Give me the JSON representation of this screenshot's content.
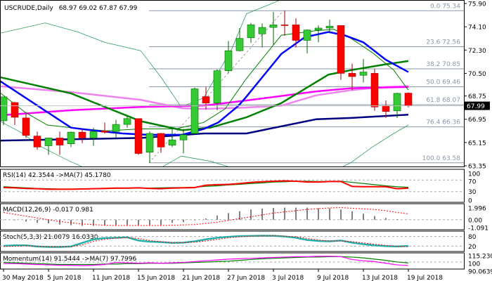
{
  "header": {
    "symbol": "USCRUDE,Daily",
    "ohlc": "68.97 69.02 67.87 67.99"
  },
  "chart_data": {
    "type": "candlestick",
    "title": "USCRUDE,Daily 68.97 69.02 67.87 67.99",
    "colors": {
      "up": "#33cc33",
      "down": "#ff0000",
      "ma_fast": "#0000ff",
      "ma_slow": "#008000",
      "ma_magenta": "#ff00ff",
      "ma_violet": "#ee82ee",
      "ma_navy": "#000080",
      "bands": "#2e9e5e",
      "fib": "#8a97a8"
    },
    "x_ticks": [
      {
        "i": 0,
        "label": "30 May 2018"
      },
      {
        "i": 4,
        "label": "5 Jun 2018"
      },
      {
        "i": 8,
        "label": "11 Jun 2018"
      },
      {
        "i": 12,
        "label": "15 Jun 2018"
      },
      {
        "i": 16,
        "label": "21 Jun 2018"
      },
      {
        "i": 20,
        "label": "27 Jun 2018"
      },
      {
        "i": 24,
        "label": "3 Jul 2018"
      },
      {
        "i": 28,
        "label": "9 Jul 2018"
      },
      {
        "i": 32,
        "label": "13 Jul 2018"
      },
      {
        "i": 36,
        "label": "19 Jul 2018"
      }
    ],
    "y_ticks": [
      "75.90",
      "74.10",
      "72.30",
      "70.50",
      "68.75",
      "66.95",
      "65.15",
      "63.35"
    ],
    "ylim": [
      63.35,
      75.9
    ],
    "last_price": "67.99",
    "ohlc": [
      [
        66.83,
        68.7,
        66.5,
        68.68
      ],
      [
        68.24,
        68.3,
        66.5,
        67.1
      ],
      [
        67.05,
        67.4,
        65.5,
        65.7
      ],
      [
        65.65,
        66.0,
        64.6,
        64.8
      ],
      [
        64.9,
        65.5,
        64.2,
        65.5
      ],
      [
        65.5,
        66.0,
        64.2,
        64.95
      ],
      [
        65.05,
        66.0,
        64.8,
        65.95
      ],
      [
        65.95,
        66.2,
        65.1,
        65.5
      ],
      [
        65.5,
        66.3,
        64.9,
        66.0
      ],
      [
        66.05,
        66.7,
        65.85,
        65.95
      ],
      [
        66.0,
        66.9,
        65.5,
        66.55
      ],
      [
        66.55,
        67.2,
        66.3,
        67.0
      ],
      [
        67.0,
        67.0,
        64.2,
        64.3
      ],
      [
        64.4,
        66.0,
        63.58,
        65.85
      ],
      [
        65.85,
        65.9,
        64.35,
        64.8
      ],
      [
        64.95,
        66.3,
        64.8,
        65.35
      ],
      [
        65.35,
        66.2,
        64.3,
        65.75
      ],
      [
        65.85,
        69.4,
        65.8,
        69.3
      ],
      [
        68.7,
        69.45,
        67.7,
        68.2
      ],
      [
        68.2,
        70.8,
        67.65,
        70.7
      ],
      [
        70.7,
        73.0,
        70.5,
        72.25
      ],
      [
        72.25,
        74.0,
        72.2,
        73.2
      ],
      [
        73.25,
        74.4,
        72.85,
        74.25
      ],
      [
        73.55,
        74.35,
        72.5,
        74.05
      ],
      [
        74.05,
        75.25,
        72.7,
        74.25
      ],
      [
        74.25,
        75.34,
        73.4,
        74.2
      ],
      [
        74.25,
        74.75,
        72.5,
        73.05
      ],
      [
        73.05,
        73.9,
        72.05,
        73.85
      ],
      [
        73.85,
        74.2,
        72.9,
        74.0
      ],
      [
        74.0,
        74.65,
        73.6,
        74.15
      ],
      [
        74.2,
        74.2,
        70.0,
        70.5
      ],
      [
        70.5,
        71.25,
        69.2,
        70.25
      ],
      [
        70.35,
        71.6,
        69.8,
        70.6
      ],
      [
        70.5,
        70.85,
        67.6,
        67.9
      ],
      [
        68.0,
        68.4,
        67.05,
        67.55
      ],
      [
        67.6,
        69.0,
        67.05,
        68.95
      ],
      [
        68.97,
        69.02,
        67.87,
        67.99
      ]
    ],
    "fibonacci": [
      {
        "label": "0.0 75.34",
        "level": 75.34
      },
      {
        "label": "23.6 72.56",
        "level": 72.56
      },
      {
        "label": "38.2 70.85",
        "level": 70.85
      },
      {
        "label": "50.0 69.46",
        "level": 69.46
      },
      {
        "label": "61.8 68.07",
        "level": 68.07
      },
      {
        "label": "76.4 66.36",
        "level": 66.36
      },
      {
        "label": "100.0 63.58",
        "level": 63.58
      }
    ],
    "overlays": [
      {
        "key": "bb_upper",
        "color": "#2e9e5e",
        "width": 0.8,
        "points": [
          [
            -0.3,
            73.6
          ],
          [
            3.7,
            74.4
          ],
          [
            6.6,
            73.7
          ],
          [
            9,
            72.9
          ],
          [
            12.2,
            72.25
          ],
          [
            14,
            70.2
          ],
          [
            15.8,
            67.9
          ],
          [
            17.8,
            68.6
          ],
          [
            20.3,
            72.4
          ],
          [
            21.6,
            75.1
          ],
          [
            24.7,
            76.2
          ]
        ]
      },
      {
        "key": "bb_lower",
        "color": "#2e9e5e",
        "width": 0.8,
        "points": [
          [
            -0.3,
            66.8
          ],
          [
            1.6,
            65.9
          ],
          [
            3.4,
            64.8
          ],
          [
            5.9,
            63.7
          ],
          [
            7.2,
            63.2
          ],
          [
            14,
            63.2
          ],
          [
            15.8,
            64.1
          ],
          [
            18.4,
            63.7
          ],
          [
            20.3,
            63.2
          ],
          [
            30,
            63.2
          ],
          [
            30.9,
            63.6
          ],
          [
            32.8,
            64.8
          ],
          [
            34.7,
            65.85
          ],
          [
            36,
            66.5
          ]
        ]
      },
      {
        "key": "ma_navy",
        "color": "#000080",
        "width": 2.5,
        "points": [
          [
            -0.3,
            65.3
          ],
          [
            12.2,
            65.5
          ],
          [
            17.8,
            65.85
          ],
          [
            21.6,
            65.85
          ],
          [
            27.8,
            66.95
          ],
          [
            30.9,
            67.05
          ],
          [
            36,
            67.3
          ]
        ]
      },
      {
        "key": "ma_violet",
        "color": "#ee82ee",
        "width": 2.5,
        "points": [
          [
            -0.3,
            69.5
          ],
          [
            6,
            69.05
          ],
          [
            12.2,
            68.45
          ],
          [
            15.9,
            67.8
          ],
          [
            17.8,
            67.75
          ],
          [
            21.6,
            67.85
          ],
          [
            24.7,
            68.0
          ],
          [
            27.8,
            68.8
          ],
          [
            30.9,
            69.2
          ],
          [
            34,
            69.45
          ],
          [
            36,
            69.5
          ]
        ]
      },
      {
        "key": "ma_magenta",
        "color": "#ff00ff",
        "width": 2.5,
        "points": [
          [
            -0.3,
            67.25
          ],
          [
            6,
            67.65
          ],
          [
            12.2,
            67.9
          ],
          [
            17.8,
            68.0
          ],
          [
            21.6,
            68.4
          ],
          [
            27.8,
            69.1
          ],
          [
            30.9,
            69.35
          ],
          [
            36,
            69.45
          ]
        ]
      },
      {
        "key": "ma_slow",
        "color": "#008000",
        "width": 2.5,
        "points": [
          [
            -0.3,
            70.2
          ],
          [
            6,
            68.95
          ],
          [
            12.2,
            66.8
          ],
          [
            15.9,
            66.1
          ],
          [
            18.4,
            66.3
          ],
          [
            21.6,
            67.1
          ],
          [
            24.7,
            68.2
          ],
          [
            28.9,
            70.4
          ],
          [
            30.9,
            70.75
          ],
          [
            34,
            71.2
          ],
          [
            36,
            71.45
          ]
        ]
      },
      {
        "key": "ma_fast_thin",
        "color": "#008000",
        "width": 1,
        "points": [
          [
            -0.3,
            69.0
          ],
          [
            1.9,
            67.5
          ],
          [
            3.9,
            66.5
          ],
          [
            6,
            66.3
          ],
          [
            9.1,
            66.05
          ],
          [
            12.2,
            66.2
          ],
          [
            15.3,
            66.2
          ],
          [
            17.8,
            66.7
          ],
          [
            19.7,
            67.75
          ],
          [
            21.6,
            70.1
          ],
          [
            24.7,
            73.45
          ],
          [
            27.8,
            73.8
          ],
          [
            29.4,
            73.9
          ],
          [
            30.9,
            73.2
          ],
          [
            32.8,
            72.1
          ],
          [
            34.7,
            70.75
          ],
          [
            36,
            69.2
          ]
        ]
      },
      {
        "key": "ma_fast",
        "color": "#0000ff",
        "width": 2.5,
        "points": [
          [
            -0.3,
            69.9
          ],
          [
            3.9,
            67.5
          ],
          [
            6,
            66.3
          ],
          [
            7.8,
            66.1
          ],
          [
            10.6,
            65.85
          ],
          [
            12.8,
            65.75
          ],
          [
            15.9,
            65.75
          ],
          [
            17.8,
            66.2
          ],
          [
            19.1,
            66.7
          ],
          [
            20.9,
            68.0
          ],
          [
            21.6,
            68.7
          ],
          [
            24.7,
            72.0
          ],
          [
            26.8,
            73.3
          ],
          [
            28.9,
            73.7
          ],
          [
            30.3,
            73.45
          ],
          [
            32,
            72.9
          ],
          [
            34,
            71.55
          ],
          [
            36,
            70.6
          ]
        ]
      }
    ],
    "indicators": {
      "rsi": {
        "label": "RSI(14) 42.3544  ->MA(7) 45.1780",
        "levels": [
          "100",
          "70",
          "30",
          "0"
        ],
        "values": [
          44,
          43,
          41,
          40,
          38,
          38,
          38,
          39,
          40,
          41,
          42,
          42,
          43,
          41,
          40,
          42,
          43,
          44,
          52,
          54,
          55,
          58,
          62,
          64,
          66,
          67,
          66,
          63,
          63,
          65,
          65,
          48,
          47,
          47,
          47,
          40,
          42
        ],
        "ma": [
          47,
          45,
          43,
          41,
          40,
          39,
          39,
          39,
          40,
          40,
          41,
          41,
          42,
          42,
          43,
          44,
          44,
          45,
          48,
          50,
          53,
          55,
          58,
          60,
          63,
          64,
          66,
          66,
          65,
          65,
          66,
          62,
          58,
          54,
          50,
          47,
          45
        ]
      },
      "macd": {
        "label": "MACD(12,26,9) -0.017 0.981",
        "ticks": [
          "1.996",
          "0.00",
          "-1.091"
        ],
        "hist": [
          -0.05,
          -0.1,
          -0.3,
          -0.5,
          -0.6,
          -0.8,
          -0.9,
          -1.0,
          -1.0,
          -0.95,
          -0.9,
          -0.9,
          -0.9,
          -0.9,
          -0.9,
          -0.5,
          -0.4,
          -0.1,
          0.2,
          0.7,
          1.1,
          1.4,
          1.7,
          1.85,
          1.95,
          2.0,
          2.0,
          2.0,
          1.9,
          1.9,
          1.7,
          1.4,
          1.0,
          0.6,
          0.3,
          0.1,
          -0.017
        ],
        "signal": [
          1.2,
          0.9,
          0.6,
          0.3,
          0.0,
          -0.3,
          -0.5,
          -0.7,
          -0.8,
          -0.9,
          -0.95,
          -0.95,
          -0.95,
          -0.95,
          -0.95,
          -0.9,
          -0.85,
          -0.8,
          -0.6,
          -0.4,
          -0.1,
          0.2,
          0.5,
          0.8,
          1.1,
          1.3,
          1.5,
          1.7,
          1.85,
          1.95,
          2.0,
          1.9,
          1.8,
          1.7,
          1.5,
          1.2,
          0.981
        ]
      },
      "stoch": {
        "label": "Stoch(5,3,3) 21.0079 16.0330",
        "levels": [
          "80",
          "20"
        ],
        "main": [
          22,
          25,
          25,
          18,
          15,
          15,
          18,
          40,
          62,
          70,
          72,
          75,
          55,
          48,
          45,
          40,
          42,
          50,
          62,
          72,
          78,
          82,
          83,
          85,
          84,
          80,
          72,
          58,
          52,
          50,
          55,
          42,
          32,
          25,
          20,
          18,
          21
        ],
        "signal": [
          18,
          20,
          22,
          20,
          17,
          16,
          17,
          28,
          50,
          62,
          70,
          72,
          68,
          55,
          48,
          42,
          42,
          45,
          52,
          62,
          72,
          78,
          82,
          83,
          84,
          82,
          78,
          68,
          58,
          52,
          52,
          48,
          40,
          32,
          25,
          20,
          16
        ]
      },
      "momentum": {
        "label": "Momentum(14) 91.5444  ->MA(7) 97.7996",
        "ticks": [
          "115.2307",
          "100",
          "90.0639"
        ],
        "values": [
          96,
          96,
          95,
          94,
          93,
          92,
          92,
          91,
          92,
          94,
          99,
          98,
          97,
          98,
          97,
          98,
          99,
          101,
          103,
          105,
          107,
          108,
          109,
          110,
          111,
          112,
          113,
          113,
          114,
          114,
          113,
          106,
          103,
          101,
          97,
          93,
          91.5
        ],
        "ma": [
          99,
          98,
          97,
          96,
          95,
          94,
          94,
          94,
          94,
          95,
          95,
          96,
          96,
          97,
          97,
          97,
          98,
          99,
          100,
          101,
          102,
          104,
          106,
          108,
          109,
          110,
          111,
          112,
          112,
          113,
          113,
          112,
          110,
          107,
          104,
          100,
          97.8
        ]
      }
    }
  }
}
